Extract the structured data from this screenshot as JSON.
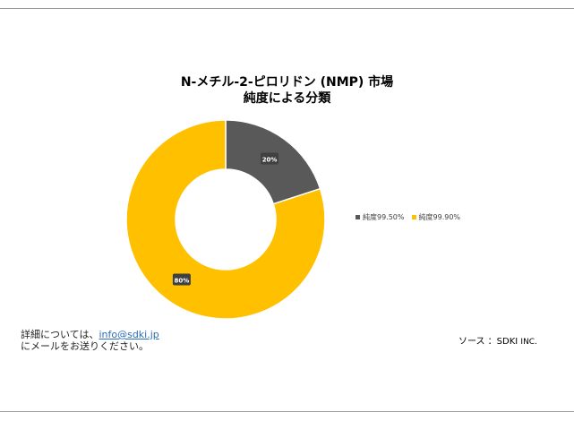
{
  "chart_data": {
    "type": "pie",
    "donut": true,
    "title_line1": "N-メチル-2-ピロリドン (NMP) 市場",
    "title_line2": "純度による分類",
    "legend_position": "right",
    "slices": [
      {
        "name": "純度99.50%",
        "value": 20,
        "label": "20%",
        "color": "#595959"
      },
      {
        "name": "純度99.90%",
        "value": 80,
        "label": "80%",
        "color": "#FFC000"
      }
    ]
  },
  "footer": {
    "contact_line1_prefix": "詳細については、",
    "contact_email": "info@sdki.jp",
    "contact_line2": "にメールをお送りください。",
    "source_label": "ソース ：SDKI ",
    "source_inc": "INC."
  }
}
